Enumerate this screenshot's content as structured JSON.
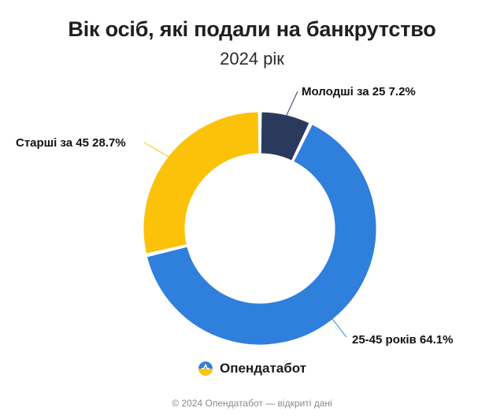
{
  "header": {
    "title": "Вік осіб, які подали на банкрутство",
    "subtitle": "2024 рік"
  },
  "chart_data": {
    "type": "pie",
    "donut": true,
    "title": "Вік осіб, які подали на банкрутство",
    "subtitle": "2024 рік",
    "unit": "%",
    "slices": [
      {
        "label": "Молодші за 25",
        "value": 7.2,
        "display": "Молодші за 25 7.2%",
        "color": "#2b3a5c"
      },
      {
        "label": "25-45 років",
        "value": 64.1,
        "display": "25-45 років 64.1%",
        "color": "#2f7fdc"
      },
      {
        "label": "Старші за 45",
        "value": 28.7,
        "display": "Старші за 45 28.7%",
        "color": "#fcc20a"
      }
    ],
    "legend": "none"
  },
  "brand": {
    "name": "Опендатабот",
    "icon": "opendatabot-logo-icon",
    "logo_colors": {
      "top": "#2f7fdc",
      "bottom": "#fcc20a"
    }
  },
  "footer": {
    "text": "© 2024 Опендатабот — відкриті дані"
  }
}
